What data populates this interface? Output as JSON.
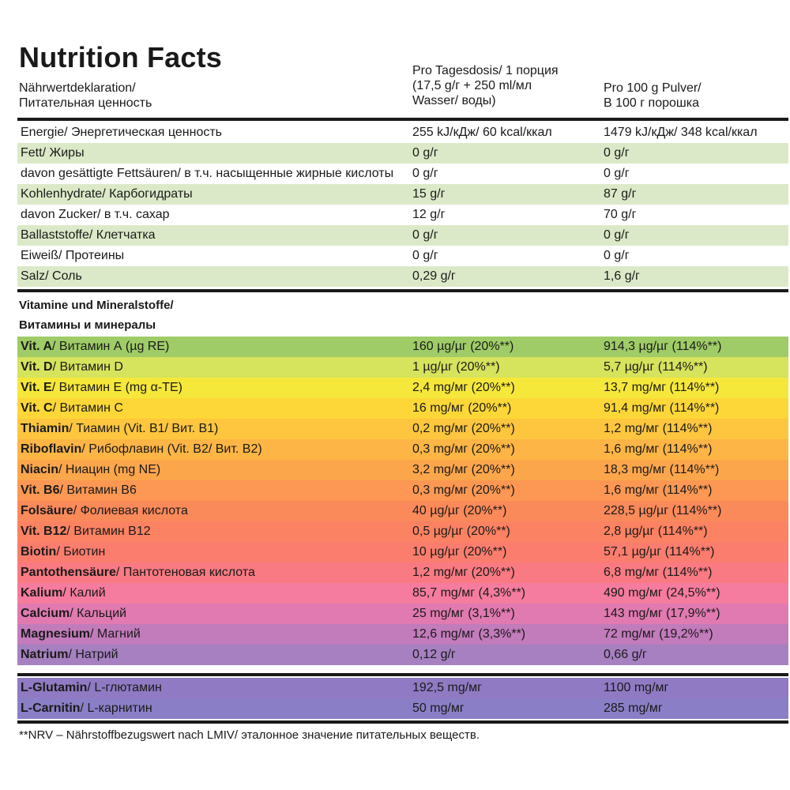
{
  "title": "Nutrition Facts",
  "header": {
    "col1": [
      "Nährwertdeklaration/",
      "Питательная ценность"
    ],
    "col2": [
      "Pro Tagesdosis/ 1 порция",
      "(17,5 g/г + 250 ml/мл",
      "Wasser/ воды)"
    ],
    "col3": [
      "Pro 100 g Pulver/",
      "В 100 г порошка"
    ]
  },
  "nutrients": [
    {
      "name": "Energie/ Энергетическая ценность",
      "per_dose": "255 kJ/кДж/ 60 kcal/ккал",
      "per_100g": "1479 kJ/кДж/ 348 kcal/ккал"
    },
    {
      "name": "Fett/ Жиры",
      "per_dose": "0 g/г",
      "per_100g": "0 g/г"
    },
    {
      "name": "davon gesättigte Fettsäuren/ в т.ч. насыщенные жирные кислоты",
      "per_dose": "0 g/г",
      "per_100g": "0 g/г"
    },
    {
      "name": "Kohlenhydrate/ Карбогидраты",
      "per_dose": "15 g/г",
      "per_100g": "87 g/г"
    },
    {
      "name": "davon Zucker/ в т.ч. сахар",
      "per_dose": "12 g/г",
      "per_100g": "70 g/г"
    },
    {
      "name": "Ballaststoffe/ Клетчатка",
      "per_dose": "0 g/г",
      "per_100g": "0 g/г"
    },
    {
      "name": "Eiweiß/ Протеины",
      "per_dose": "0 g/г",
      "per_100g": "0 g/г"
    },
    {
      "name": "Salz/ Соль",
      "per_dose": "0,29 g/г",
      "per_100g": "1,6 g/г"
    }
  ],
  "vitamins_title": [
    "Vitamine und Mineralstoffe/",
    "Витамины и минералы"
  ],
  "vitamins": [
    {
      "bold": "Vit. A",
      "rest": "/ Витамин А (µg RE)",
      "per_dose": "160 µg/µг (20%**)",
      "per_100g": "914,3 µg/µг (114%**)",
      "color": "#9fcc67"
    },
    {
      "bold": "Vit. D",
      "rest": "/ Витамин D",
      "per_dose": "1 µg/µг (20%**)",
      "per_100g": "5,7 µg/µг (114%**)",
      "color": "#d6e35c"
    },
    {
      "bold": "Vit. E",
      "rest": "/ Витамин Е (mg α-TE)",
      "per_dose": "2,4 mg/мг (20%**)",
      "per_100g": "13,7 mg/мг (114%**)",
      "color": "#f6e83a"
    },
    {
      "bold": "Vit. C",
      "rest": "/ Витамин C",
      "per_dose": "16 mg/мг (20%**)",
      "per_100g": "91,4 mg/мг (114%**)",
      "color": "#fdd737"
    },
    {
      "bold": "Thiamin",
      "rest": "/ Тиамин (Vit. B1/ Вит. B1)",
      "per_dose": "0,2 mg/мг (20%**)",
      "per_100g": "1,2 mg/мг (114%**)",
      "color": "#fdc63e"
    },
    {
      "bold": "Riboflavin",
      "rest": "/ Рибофлавин (Vit. B2/ Вит. B2)",
      "per_dose": "0,3 mg/мг (20%**)",
      "per_100g": "1,6 mg/мг (114%**)",
      "color": "#fdb545"
    },
    {
      "bold": "Niacin",
      "rest": "/ Ниацин (mg NE)",
      "per_dose": "3,2 mg/мг (20%**)",
      "per_100g": "18,3 mg/мг (114%**)",
      "color": "#fca64c"
    },
    {
      "bold": "Vit. B6",
      "rest": "/ Витамин В6",
      "per_dose": "0,3 mg/мг (20%**)",
      "per_100g": "1,6 mg/мг (114%**)",
      "color": "#fc9853"
    },
    {
      "bold": "Folsäure",
      "rest": "/ Фолиевая кислота",
      "per_dose": "40 µg/µг (20%**)",
      "per_100g": "228,5 µg/µг (114%**)",
      "color": "#fb8a5a"
    },
    {
      "bold": "Vit. B12",
      "rest": "/ Витамин В12",
      "per_dose": "0,5 µg/µг (20%**)",
      "per_100g": "2,8 µg/µг (114%**)",
      "color": "#fb8262"
    },
    {
      "bold": "Biotin",
      "rest": "/ Биотин",
      "per_dose": "10 µg/µг (20%**)",
      "per_100g": "57,1 µg/µг (114%**)",
      "color": "#fb7d6e"
    },
    {
      "bold": "Pantothensäure",
      "rest": "/ Пантотеновая кислота",
      "per_dose": "1,2 mg/мг (20%**)",
      "per_100g": "6,8 mg/мг (114%**)",
      "color": "#f97a82"
    },
    {
      "bold": "Kalium",
      "rest": "/ Калий",
      "per_dose": "85,7 mg/мг (4,3%**)",
      "per_100g": "490 mg/мг (24,5%**)",
      "color": "#f57c9e"
    },
    {
      "bold": "Calcium",
      "rest": "/ Кальций",
      "per_dose": "25 mg/мг (3,1%**)",
      "per_100g": "143 mg/мг (17,9%**)",
      "color": "#e07ab0"
    },
    {
      "bold": "Magnesium",
      "rest": "/ Магний",
      "per_dose": "12,6 mg/мг (3,3%**)",
      "per_100g": "72 mg/мг (19,2%**)",
      "color": "#c27bbb"
    },
    {
      "bold": "Natrium",
      "rest": "/ Натрий",
      "per_dose": "0,12 g/г",
      "per_100g": "0,66 g/г",
      "color": "#a680c1"
    }
  ],
  "amino": [
    {
      "bold": "L-Glutamin",
      "rest": "/ L-глютамин",
      "per_dose": "192,5 mg/мг",
      "per_100g": "1100 mg/мг",
      "color": "#8f7ac3"
    },
    {
      "bold": "L-Carnitin",
      "rest": "/ L-карнитин",
      "per_dose": "50 mg/мг",
      "per_100g": "285 mg/мг",
      "color": "#8a7fc6"
    }
  ],
  "footnote": "**NRV – Nährstoffbezugswert nach LMIV/ эталонное значение питательных веществ.",
  "colors": {
    "nutrient_stripe": "#dce9c8",
    "text": "#1a1a1a"
  }
}
